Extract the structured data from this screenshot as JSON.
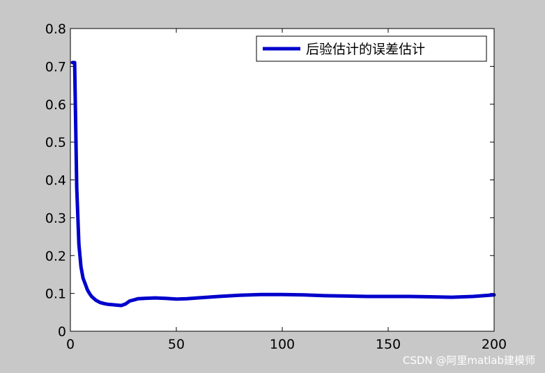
{
  "chart_data": {
    "type": "line",
    "title": "",
    "xlabel": "",
    "ylabel": "",
    "xlim": [
      0,
      200
    ],
    "ylim": [
      0,
      0.8
    ],
    "xticks": [
      0,
      50,
      100,
      150,
      200
    ],
    "yticks": [
      0,
      0.1,
      0.2,
      0.3,
      0.4,
      0.5,
      0.6,
      0.7,
      0.8
    ],
    "xtick_labels": [
      "0",
      "50",
      "100",
      "150",
      "200"
    ],
    "ytick_labels": [
      "0",
      "0.1",
      "0.2",
      "0.3",
      "0.4",
      "0.5",
      "0.6",
      "0.7",
      "0.8"
    ],
    "grid": false,
    "legend_position": "top-right",
    "series": [
      {
        "name": "后验估计的误差估计",
        "color": "#0000cc",
        "x": [
          1,
          2,
          3,
          4,
          5,
          6,
          7,
          8,
          9,
          10,
          12,
          14,
          16,
          18,
          20,
          22,
          24,
          26,
          28,
          30,
          32,
          35,
          40,
          45,
          50,
          55,
          60,
          70,
          80,
          90,
          100,
          110,
          120,
          130,
          140,
          150,
          160,
          170,
          180,
          190,
          200
        ],
        "y": [
          0.71,
          0.71,
          0.38,
          0.23,
          0.17,
          0.14,
          0.125,
          0.11,
          0.1,
          0.092,
          0.082,
          0.076,
          0.073,
          0.071,
          0.07,
          0.069,
          0.068,
          0.072,
          0.08,
          0.083,
          0.086,
          0.087,
          0.088,
          0.087,
          0.085,
          0.086,
          0.088,
          0.092,
          0.095,
          0.097,
          0.097,
          0.096,
          0.094,
          0.093,
          0.092,
          0.092,
          0.092,
          0.091,
          0.09,
          0.092,
          0.096
        ]
      }
    ]
  },
  "watermark": "CSDN @阿里matlab建模师"
}
